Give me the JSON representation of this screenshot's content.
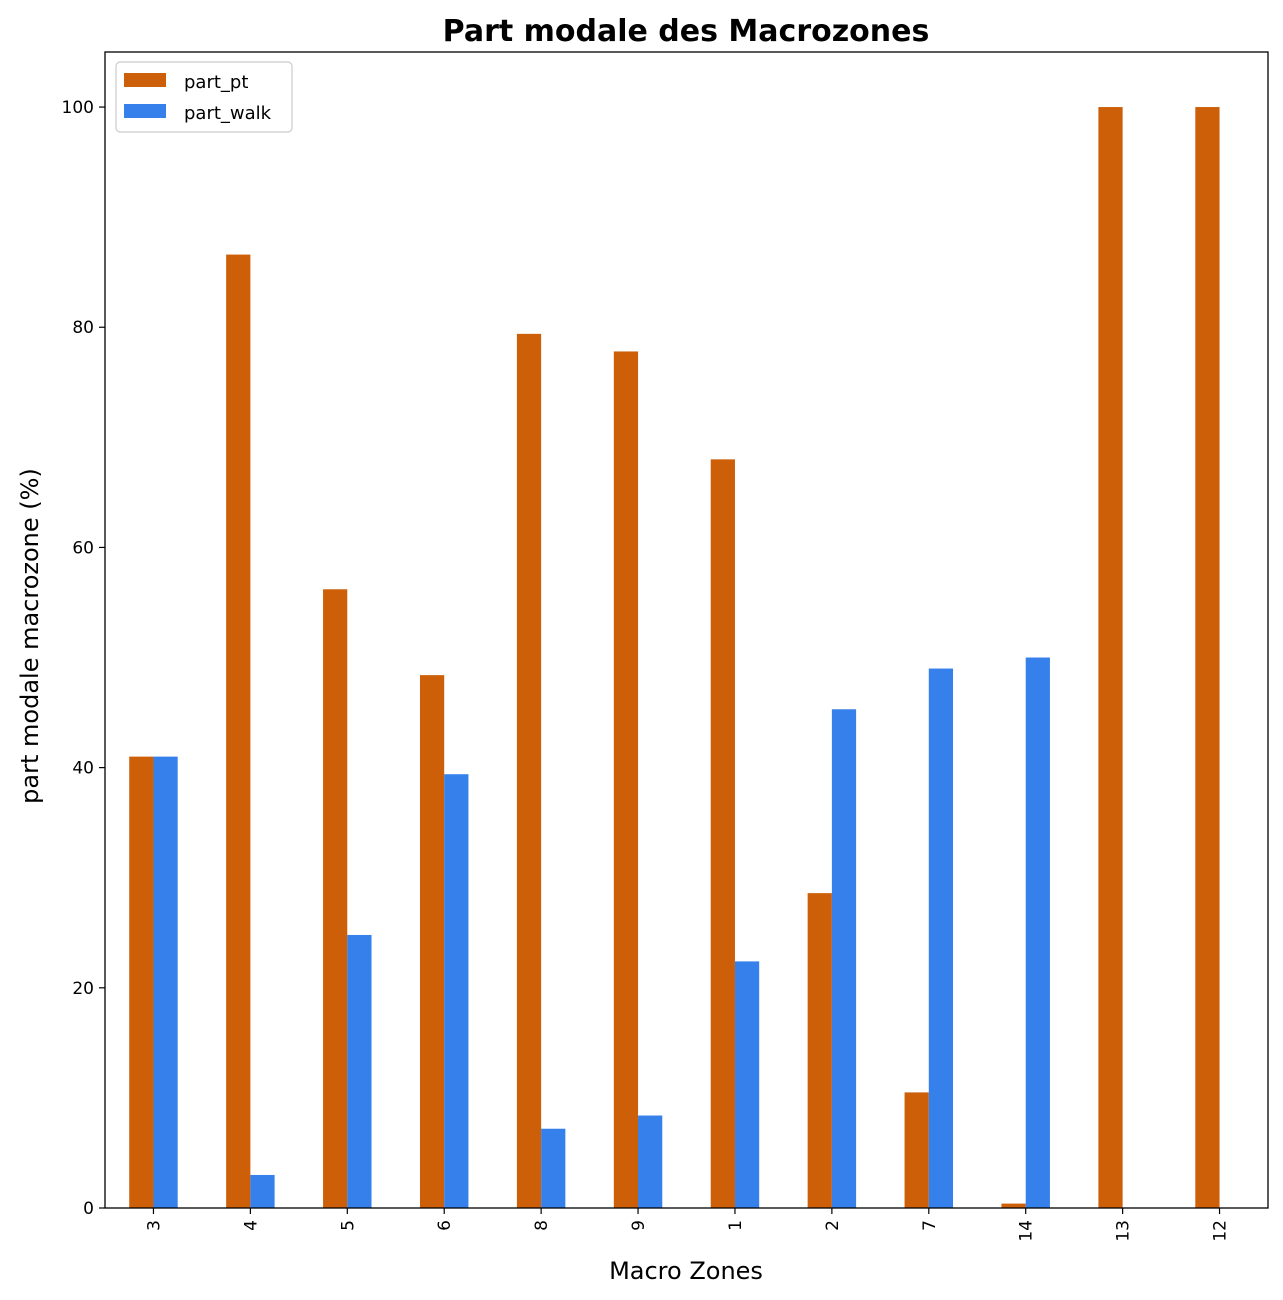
{
  "chart_data": {
    "type": "bar",
    "title": "Part modale des Macrozones",
    "xlabel": "Macro Zones",
    "ylabel": "part modale macrozone (%)",
    "categories": [
      "3",
      "4",
      "5",
      "6",
      "8",
      "9",
      "1",
      "2",
      "7",
      "14",
      "13",
      "12"
    ],
    "series": [
      {
        "name": "part_pt",
        "color": "#cc5f07",
        "values": [
          41.0,
          86.6,
          56.2,
          48.4,
          79.4,
          77.8,
          68.0,
          28.6,
          10.5,
          0.4,
          100.0,
          100.0
        ]
      },
      {
        "name": "part_walk",
        "color": "#3580eb",
        "values": [
          41.0,
          3.0,
          24.8,
          39.4,
          7.2,
          8.4,
          22.4,
          45.3,
          49.0,
          50.0,
          0.0,
          0.0
        ]
      }
    ],
    "ylim": [
      0,
      105
    ],
    "yticks": [
      0,
      20,
      40,
      60,
      80,
      100
    ],
    "grid": false,
    "legend_position": "top-left"
  }
}
